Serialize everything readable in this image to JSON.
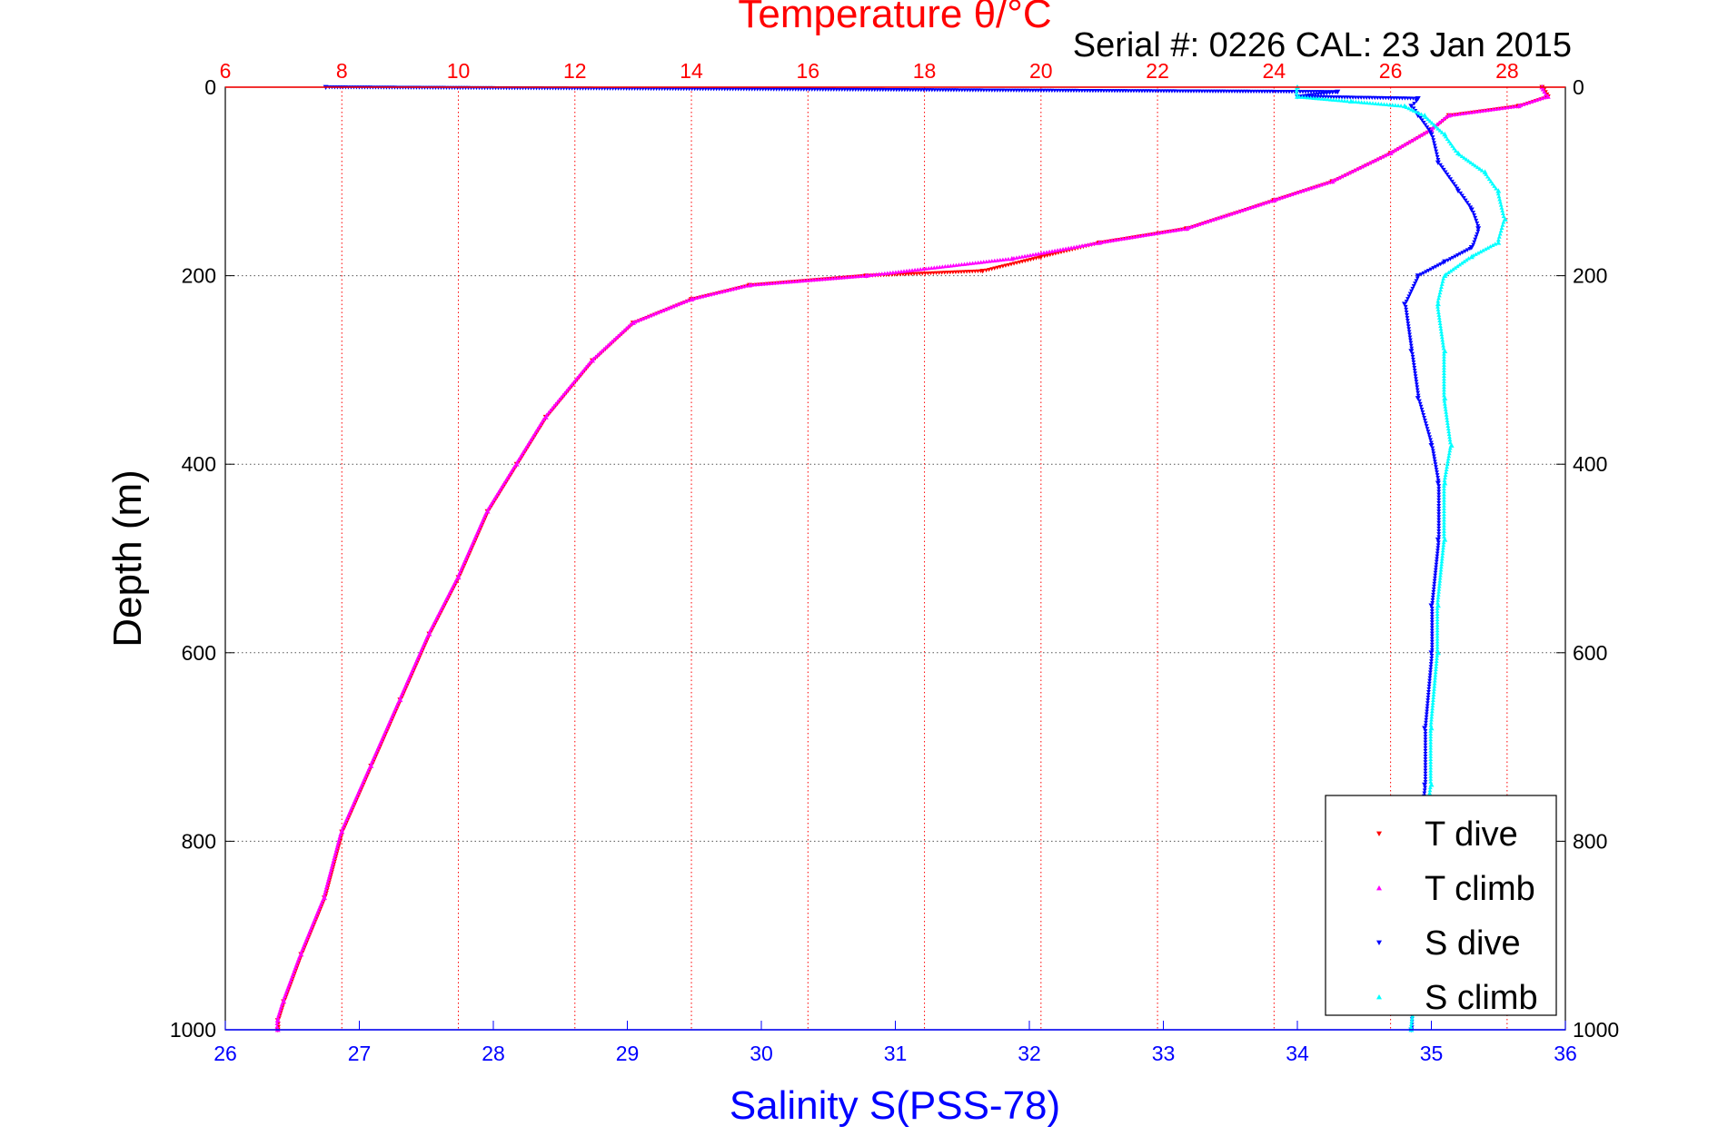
{
  "chart_data": {
    "type": "scatter",
    "title": "Temperature θ/°C",
    "serial_text": "Serial #: 0226  CAL: 23 Jan 2015",
    "ylabel": "Depth (m)",
    "xlabel_bottom": "Salinity S(PSS-78)",
    "ylim": [
      1000,
      0
    ],
    "y_ticks": [
      0,
      200,
      400,
      600,
      800,
      1000
    ],
    "y_tick_labels": [
      "0",
      "200",
      "400",
      "600",
      "800",
      "1000"
    ],
    "x_bottom_lim": [
      26,
      36
    ],
    "x_bottom_ticks": [
      26,
      27,
      28,
      29,
      30,
      31,
      32,
      33,
      34,
      35,
      36
    ],
    "x_bottom_tick_labels": [
      "26",
      "27",
      "28",
      "29",
      "30",
      "31",
      "32",
      "33",
      "34",
      "35",
      "36"
    ],
    "x_top_lim": [
      6,
      29
    ],
    "x_top_ticks": [
      6,
      8,
      10,
      12,
      14,
      16,
      18,
      20,
      22,
      24,
      26,
      28
    ],
    "x_top_tick_labels": [
      "6",
      "8",
      "10",
      "12",
      "14",
      "16",
      "18",
      "20",
      "22",
      "24",
      "26",
      "28"
    ],
    "grid": true,
    "legend_position": "bottom-right",
    "colors": {
      "temperature_axis": "#ff0000",
      "salinity_axis": "#0000ff",
      "t_dive": "#ff0000",
      "t_climb": "#ff00ff",
      "s_dive": "#0000ff",
      "s_climb": "#00ffff"
    },
    "series": [
      {
        "name": "T dive",
        "axis": "temperature",
        "color": "#ff0000",
        "marker": "triangle-down",
        "x": [
          28.6,
          28.7,
          28.2,
          27.0,
          26.7,
          26.0,
          25.0,
          24.0,
          22.5,
          21.0,
          20.0,
          19.0,
          17.0,
          15.0,
          14.0,
          13.0,
          12.3,
          11.5,
          11.0,
          10.5,
          10.0,
          9.5,
          9.0,
          8.5,
          8.0,
          7.7,
          7.3,
          7.0,
          6.9,
          6.9
        ],
        "y": [
          0,
          10,
          20,
          30,
          45,
          70,
          100,
          120,
          150,
          165,
          180,
          195,
          200,
          210,
          225,
          250,
          290,
          350,
          400,
          450,
          520,
          580,
          650,
          720,
          790,
          860,
          920,
          970,
          990,
          1000
        ]
      },
      {
        "name": "T climb",
        "axis": "temperature",
        "color": "#ff00ff",
        "marker": "triangle-up",
        "x": [
          28.6,
          28.7,
          28.2,
          27.0,
          26.7,
          26.0,
          25.0,
          24.0,
          22.5,
          21.0,
          19.5,
          17.0,
          15.0,
          14.0,
          13.0,
          12.3,
          11.5,
          11.0,
          10.5,
          10.0,
          9.5,
          9.0,
          8.5,
          8.0,
          7.7,
          7.3,
          7.0,
          6.9,
          6.9
        ],
        "y": [
          0,
          10,
          20,
          30,
          45,
          70,
          100,
          120,
          150,
          165,
          182,
          200,
          210,
          225,
          250,
          290,
          350,
          400,
          450,
          520,
          580,
          650,
          720,
          790,
          860,
          920,
          970,
          990,
          1000
        ]
      },
      {
        "name": "S dive",
        "axis": "salinity",
        "color": "#0000ff",
        "marker": "triangle-down",
        "x": [
          26.75,
          34.3,
          34.0,
          34.9,
          34.85,
          34.9,
          35.0,
          35.05,
          35.2,
          35.3,
          35.35,
          35.3,
          35.1,
          34.9,
          34.8,
          34.85,
          34.9,
          35.0,
          35.05,
          35.05,
          35.0,
          35.0,
          34.95,
          34.95,
          34.9,
          34.9,
          34.85,
          34.85
        ],
        "y": [
          0,
          5,
          10,
          12,
          20,
          30,
          50,
          80,
          110,
          130,
          150,
          170,
          185,
          200,
          230,
          280,
          330,
          380,
          420,
          480,
          550,
          600,
          680,
          740,
          800,
          880,
          950,
          1000
        ]
      },
      {
        "name": "S climb",
        "axis": "salinity",
        "color": "#00ffff",
        "marker": "triangle-up",
        "x": [
          34.0,
          34.0,
          34.4,
          34.8,
          34.95,
          35.1,
          35.2,
          35.4,
          35.5,
          35.55,
          35.5,
          35.3,
          35.1,
          35.05,
          35.1,
          35.1,
          35.15,
          35.1,
          35.1,
          35.05,
          35.05,
          35.0,
          35.0,
          34.95,
          34.95,
          34.9,
          34.85
        ],
        "y": [
          0,
          10,
          15,
          20,
          30,
          50,
          70,
          90,
          110,
          140,
          165,
          180,
          200,
          230,
          280,
          330,
          380,
          420,
          480,
          550,
          600,
          680,
          740,
          800,
          880,
          950,
          1000
        ]
      }
    ]
  }
}
